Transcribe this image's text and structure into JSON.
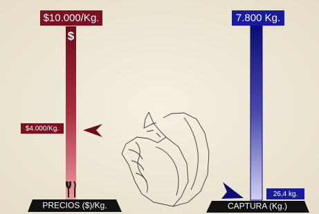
{
  "left": {
    "top_label": "$10.000/Kg.",
    "symbol": "$",
    "marker_label": "$4.000/Kg.",
    "base_label": "PRECIOS ($)/Kg."
  },
  "right": {
    "top_label": "7.800 Kg.",
    "marker_label": "26,4 kg.",
    "base_label": "CAPTURA (Kg.)"
  }
}
